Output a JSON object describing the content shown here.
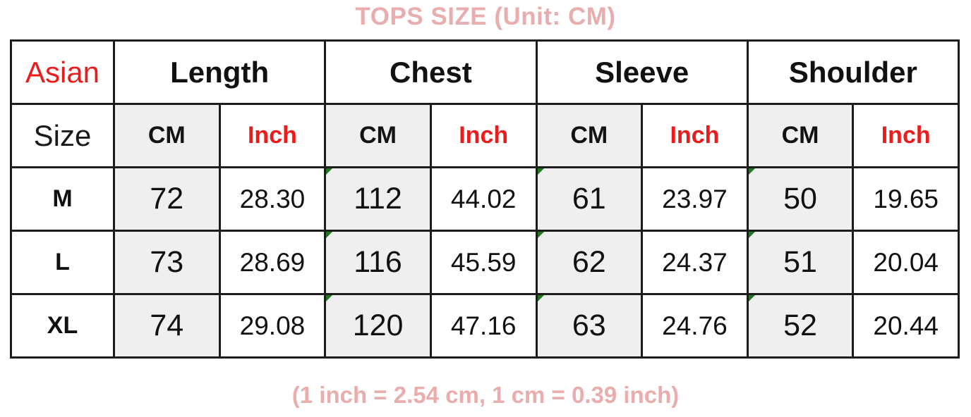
{
  "title": "TOPS SIZE (Unit: CM)",
  "footer": "(1 inch = 2.54 cm, 1 cm = 0.39 inch)",
  "colors": {
    "accent_pink": "#e9adad",
    "accent_red": "#ed1c1c",
    "cm_column_bg": "#efefef",
    "table_border": "#1c1c1c",
    "corner_marker_green": "#1f7a1f"
  },
  "table": {
    "corner": {
      "top_label": "Asian",
      "bottom_label": "Size"
    },
    "group_headers": [
      {
        "label": "Length"
      },
      {
        "label": "Chest"
      },
      {
        "label": "Sleeve"
      },
      {
        "label": "Shoulder"
      }
    ],
    "unit_headers": {
      "cm": "CM",
      "inch": "Inch"
    },
    "rows": [
      {
        "size": "M",
        "length_cm": "72",
        "length_inch": "28.30",
        "chest_cm": "112",
        "chest_inch": "44.02",
        "sleeve_cm": "61",
        "sleeve_inch": "23.97",
        "shoulder_cm": "50",
        "shoulder_inch": "19.65"
      },
      {
        "size": "L",
        "length_cm": "73",
        "length_inch": "28.69",
        "chest_cm": "116",
        "chest_inch": "45.59",
        "sleeve_cm": "62",
        "sleeve_inch": "24.37",
        "shoulder_cm": "51",
        "shoulder_inch": "20.04"
      },
      {
        "size": "XL",
        "length_cm": "74",
        "length_inch": "29.08",
        "chest_cm": "120",
        "chest_inch": "47.16",
        "sleeve_cm": "63",
        "sleeve_inch": "24.76",
        "shoulder_cm": "52",
        "shoulder_inch": "20.44"
      }
    ]
  }
}
